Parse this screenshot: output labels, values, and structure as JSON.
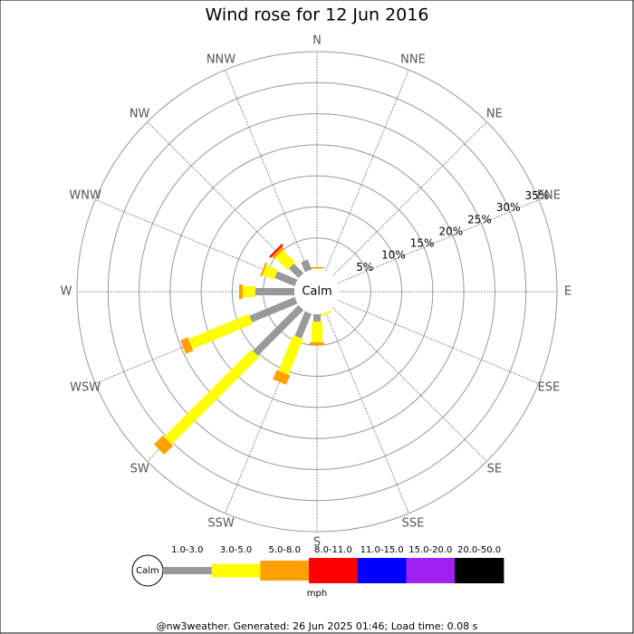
{
  "chart_data": {
    "type": "windrose",
    "title": "Wind rose for 12 Jun 2016",
    "categories": [
      "N",
      "NNE",
      "NE",
      "ENE",
      "E",
      "ESE",
      "SE",
      "SSE",
      "S",
      "SSW",
      "SW",
      "WSW",
      "W",
      "WNW",
      "NW",
      "NNW"
    ],
    "rlim": [
      0,
      35
    ],
    "rticks": [
      {
        "value": 5,
        "label": "5%"
      },
      {
        "value": 10,
        "label": "10%"
      },
      {
        "value": 15,
        "label": "15%"
      },
      {
        "value": 20,
        "label": "20%"
      },
      {
        "value": 25,
        "label": "25%"
      },
      {
        "value": 30,
        "label": "30%"
      },
      {
        "value": 35,
        "label": "35%"
      }
    ],
    "calm_label": "Calm",
    "unit": "mph",
    "series": [
      {
        "name": "1.0-3.0",
        "color": "#999999",
        "values": [
          0,
          0,
          0,
          0,
          0,
          0,
          0,
          0,
          1.2,
          4.3,
          10.4,
          7.9,
          6.3,
          3.5,
          2.2,
          1.7
        ]
      },
      {
        "name": "3.0-5.0",
        "color": "#ffff00",
        "values": [
          0.1,
          0,
          0,
          0,
          0,
          0,
          0,
          0.3,
          3.3,
          6.2,
          19.9,
          10.5,
          2.0,
          2.0,
          2.8,
          0
        ]
      },
      {
        "name": "5.0-8.0",
        "color": "#ffa000",
        "values": [
          0.2,
          0,
          0,
          0,
          0,
          0,
          0,
          0,
          0.5,
          1.6,
          2.0,
          1.3,
          0.6,
          0.3,
          0.5,
          0
        ]
      },
      {
        "name": "8.0-11.0",
        "color": "#ff0000",
        "values": [
          0,
          0,
          0,
          0,
          0,
          0,
          0,
          0,
          0,
          0,
          0,
          0,
          0,
          0,
          0.3,
          0
        ]
      },
      {
        "name": "11.0-15.0",
        "color": "#0000ff",
        "values": [
          0,
          0,
          0,
          0,
          0,
          0,
          0,
          0,
          0,
          0,
          0,
          0,
          0,
          0,
          0,
          0
        ]
      },
      {
        "name": "15.0-20.0",
        "color": "#a020f0",
        "values": [
          0,
          0,
          0,
          0,
          0,
          0,
          0,
          0,
          0,
          0,
          0,
          0,
          0,
          0,
          0,
          0
        ]
      },
      {
        "name": "20.0-50.0",
        "color": "#000000",
        "values": [
          0,
          0,
          0,
          0,
          0,
          0,
          0,
          0,
          0,
          0,
          0,
          0,
          0,
          0,
          0,
          0
        ]
      }
    ],
    "footer": "@nw3weather. Generated: 26 Jun 2025 01:46; Load time: 0.08 s"
  }
}
